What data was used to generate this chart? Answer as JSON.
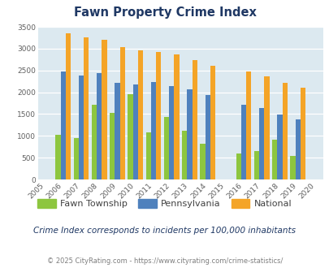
{
  "title": "Fawn Property Crime Index",
  "years": [
    2005,
    2006,
    2007,
    2008,
    2009,
    2010,
    2011,
    2012,
    2013,
    2014,
    2015,
    2016,
    2017,
    2018,
    2019,
    2020
  ],
  "fawn": [
    null,
    1020,
    960,
    1720,
    1530,
    1950,
    1090,
    1430,
    1120,
    820,
    null,
    600,
    660,
    910,
    540,
    null
  ],
  "pennsylvania": [
    null,
    2480,
    2380,
    2440,
    2210,
    2180,
    2230,
    2150,
    2060,
    1940,
    null,
    1720,
    1640,
    1490,
    1380,
    null
  ],
  "national": [
    null,
    3350,
    3260,
    3210,
    3040,
    2960,
    2920,
    2860,
    2740,
    2600,
    null,
    2470,
    2370,
    2210,
    2110,
    null
  ],
  "fawn_color": "#8dc63f",
  "pennsylvania_color": "#4f81bd",
  "national_color": "#f4a427",
  "bg_color": "#dce9f0",
  "ylim": [
    0,
    3500
  ],
  "yticks": [
    0,
    500,
    1000,
    1500,
    2000,
    2500,
    3000,
    3500
  ],
  "subtitle": "Crime Index corresponds to incidents per 100,000 inhabitants",
  "footer": "© 2025 CityRating.com - https://www.cityrating.com/crime-statistics/",
  "title_color": "#1f3864",
  "subtitle_color": "#1f3864",
  "footer_color": "#7f7f7f",
  "legend_text_color": "#404040",
  "tick_color": "#606060"
}
